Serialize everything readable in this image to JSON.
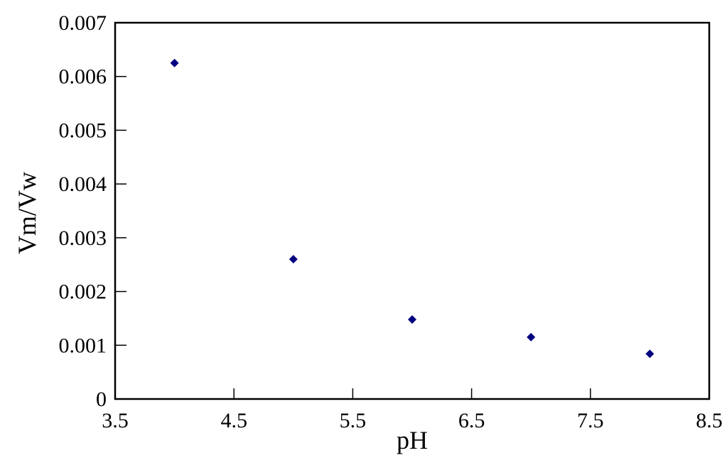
{
  "chart_data": {
    "type": "scatter",
    "title": "",
    "xlabel": "pH",
    "ylabel": "Vm/Vw",
    "xlim": [
      3.5,
      8.5
    ],
    "ylim": [
      0,
      0.007
    ],
    "xticks": [
      "3.5",
      "4.5",
      "5.5",
      "6.5",
      "7.5",
      "8.5"
    ],
    "yticks": [
      "0",
      "0.001",
      "0.002",
      "0.003",
      "0.004",
      "0.005",
      "0.006",
      "0.007"
    ],
    "grid": false,
    "legend": "none",
    "marker": "diamond",
    "color": "#000080",
    "series": [
      {
        "x": [
          4,
          5,
          6,
          7,
          8
        ],
        "y": [
          0.00625,
          0.0026,
          0.00148,
          0.00115,
          0.00084
        ]
      }
    ]
  }
}
